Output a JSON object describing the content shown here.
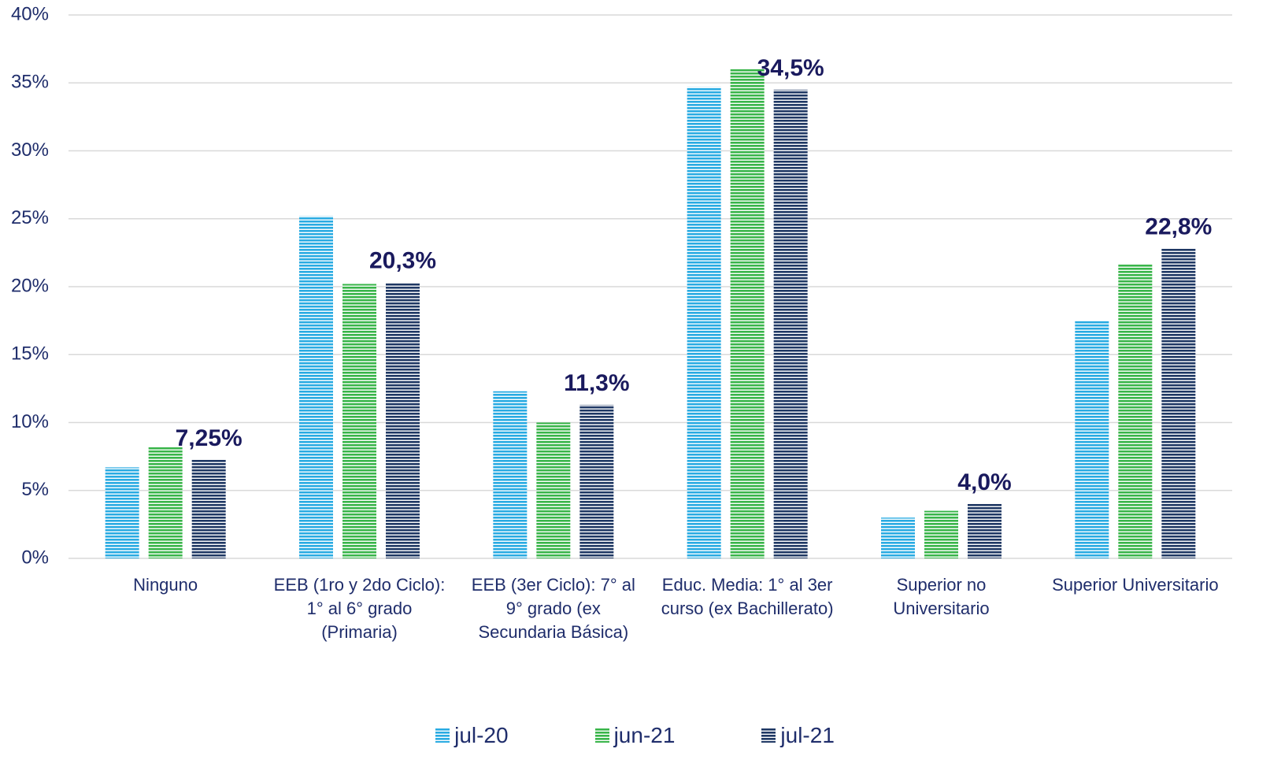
{
  "chart_data": {
    "type": "bar",
    "categories": [
      "Ninguno",
      "EEB (1ro y 2do Ciclo):\n1° al 6° grado\n(Primaria)",
      "EEB (3er Ciclo): 7° al\n9° grado (ex\nSecundaria Básica)",
      "Educ. Media: 1° al 3er\ncurso (ex Bachillerato)",
      "Superior no\nUniversitario",
      "Superior Universitario"
    ],
    "series": [
      {
        "name": "jul-20",
        "color": "#29abe2",
        "values": [
          6.7,
          25.2,
          12.3,
          34.7,
          3.0,
          17.5
        ]
      },
      {
        "name": "jun-21",
        "color": "#39b54a",
        "values": [
          8.2,
          20.2,
          10.0,
          36.0,
          3.5,
          21.7
        ]
      },
      {
        "name": "jul-21",
        "color": "#1f3864",
        "values": [
          7.25,
          20.3,
          11.3,
          34.5,
          4.0,
          22.8
        ],
        "value_labels": [
          "7,25%",
          "20,3%",
          "11,3%",
          "34,5%",
          "4,0%",
          "22,8%"
        ]
      }
    ],
    "ylim": [
      0,
      40
    ],
    "yticks": [
      {
        "value": 0,
        "label": "0%"
      },
      {
        "value": 5,
        "label": "5%"
      },
      {
        "value": 10,
        "label": "10%"
      },
      {
        "value": 15,
        "label": "15%"
      },
      {
        "value": 20,
        "label": "20%"
      },
      {
        "value": 25,
        "label": "25%"
      },
      {
        "value": 30,
        "label": "30%"
      },
      {
        "value": 35,
        "label": "35%"
      },
      {
        "value": 40,
        "label": "40%"
      }
    ],
    "grid": true,
    "legend": "bottom"
  }
}
